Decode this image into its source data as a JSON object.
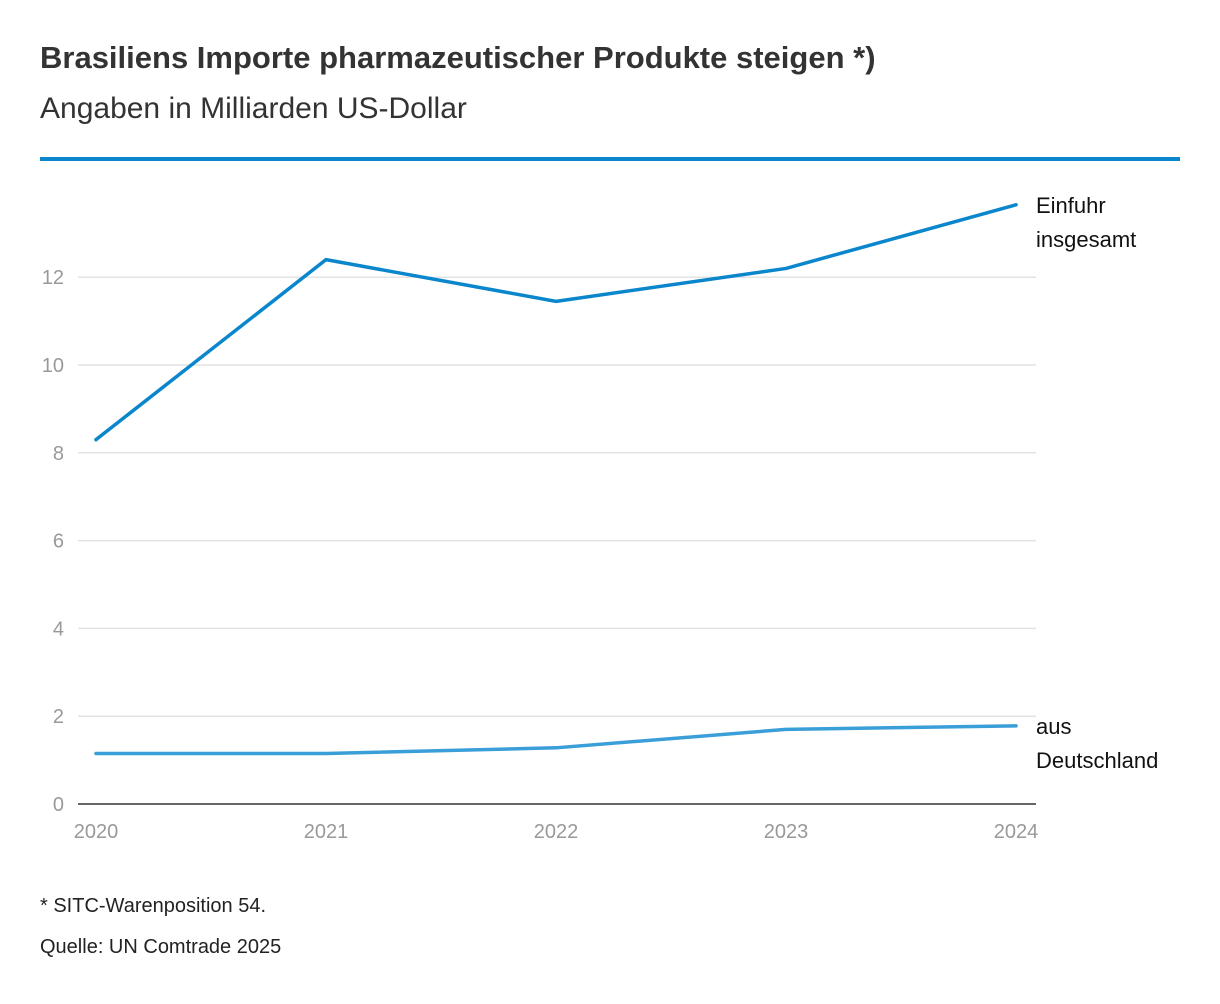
{
  "chart_data": {
    "type": "line",
    "title": "Brasiliens Importe pharmazeutischer Produkte steigen *)",
    "subtitle": "Angaben in Milliarden US-Dollar",
    "xlabel": "",
    "ylabel": "",
    "x": [
      "2020",
      "2021",
      "2022",
      "2023",
      "2024"
    ],
    "yticks": [
      "0",
      "2",
      "4",
      "6",
      "8",
      "10",
      "12"
    ],
    "ylim": [
      0,
      13.7
    ],
    "grid": true,
    "series": [
      {
        "name_lines": [
          "Einfuhr",
          "insgesamt"
        ],
        "values": [
          8.3,
          12.4,
          11.45,
          12.2,
          13.65
        ],
        "color": "#0a87cc"
      },
      {
        "name_lines": [
          "aus",
          "Deutschland"
        ],
        "values": [
          1.15,
          1.15,
          1.28,
          1.7,
          1.78
        ],
        "color": "#3a9fd8"
      }
    ],
    "footnote": "* SITC-Warenposition 54.",
    "source": "Quelle: UN Comtrade 2025"
  }
}
